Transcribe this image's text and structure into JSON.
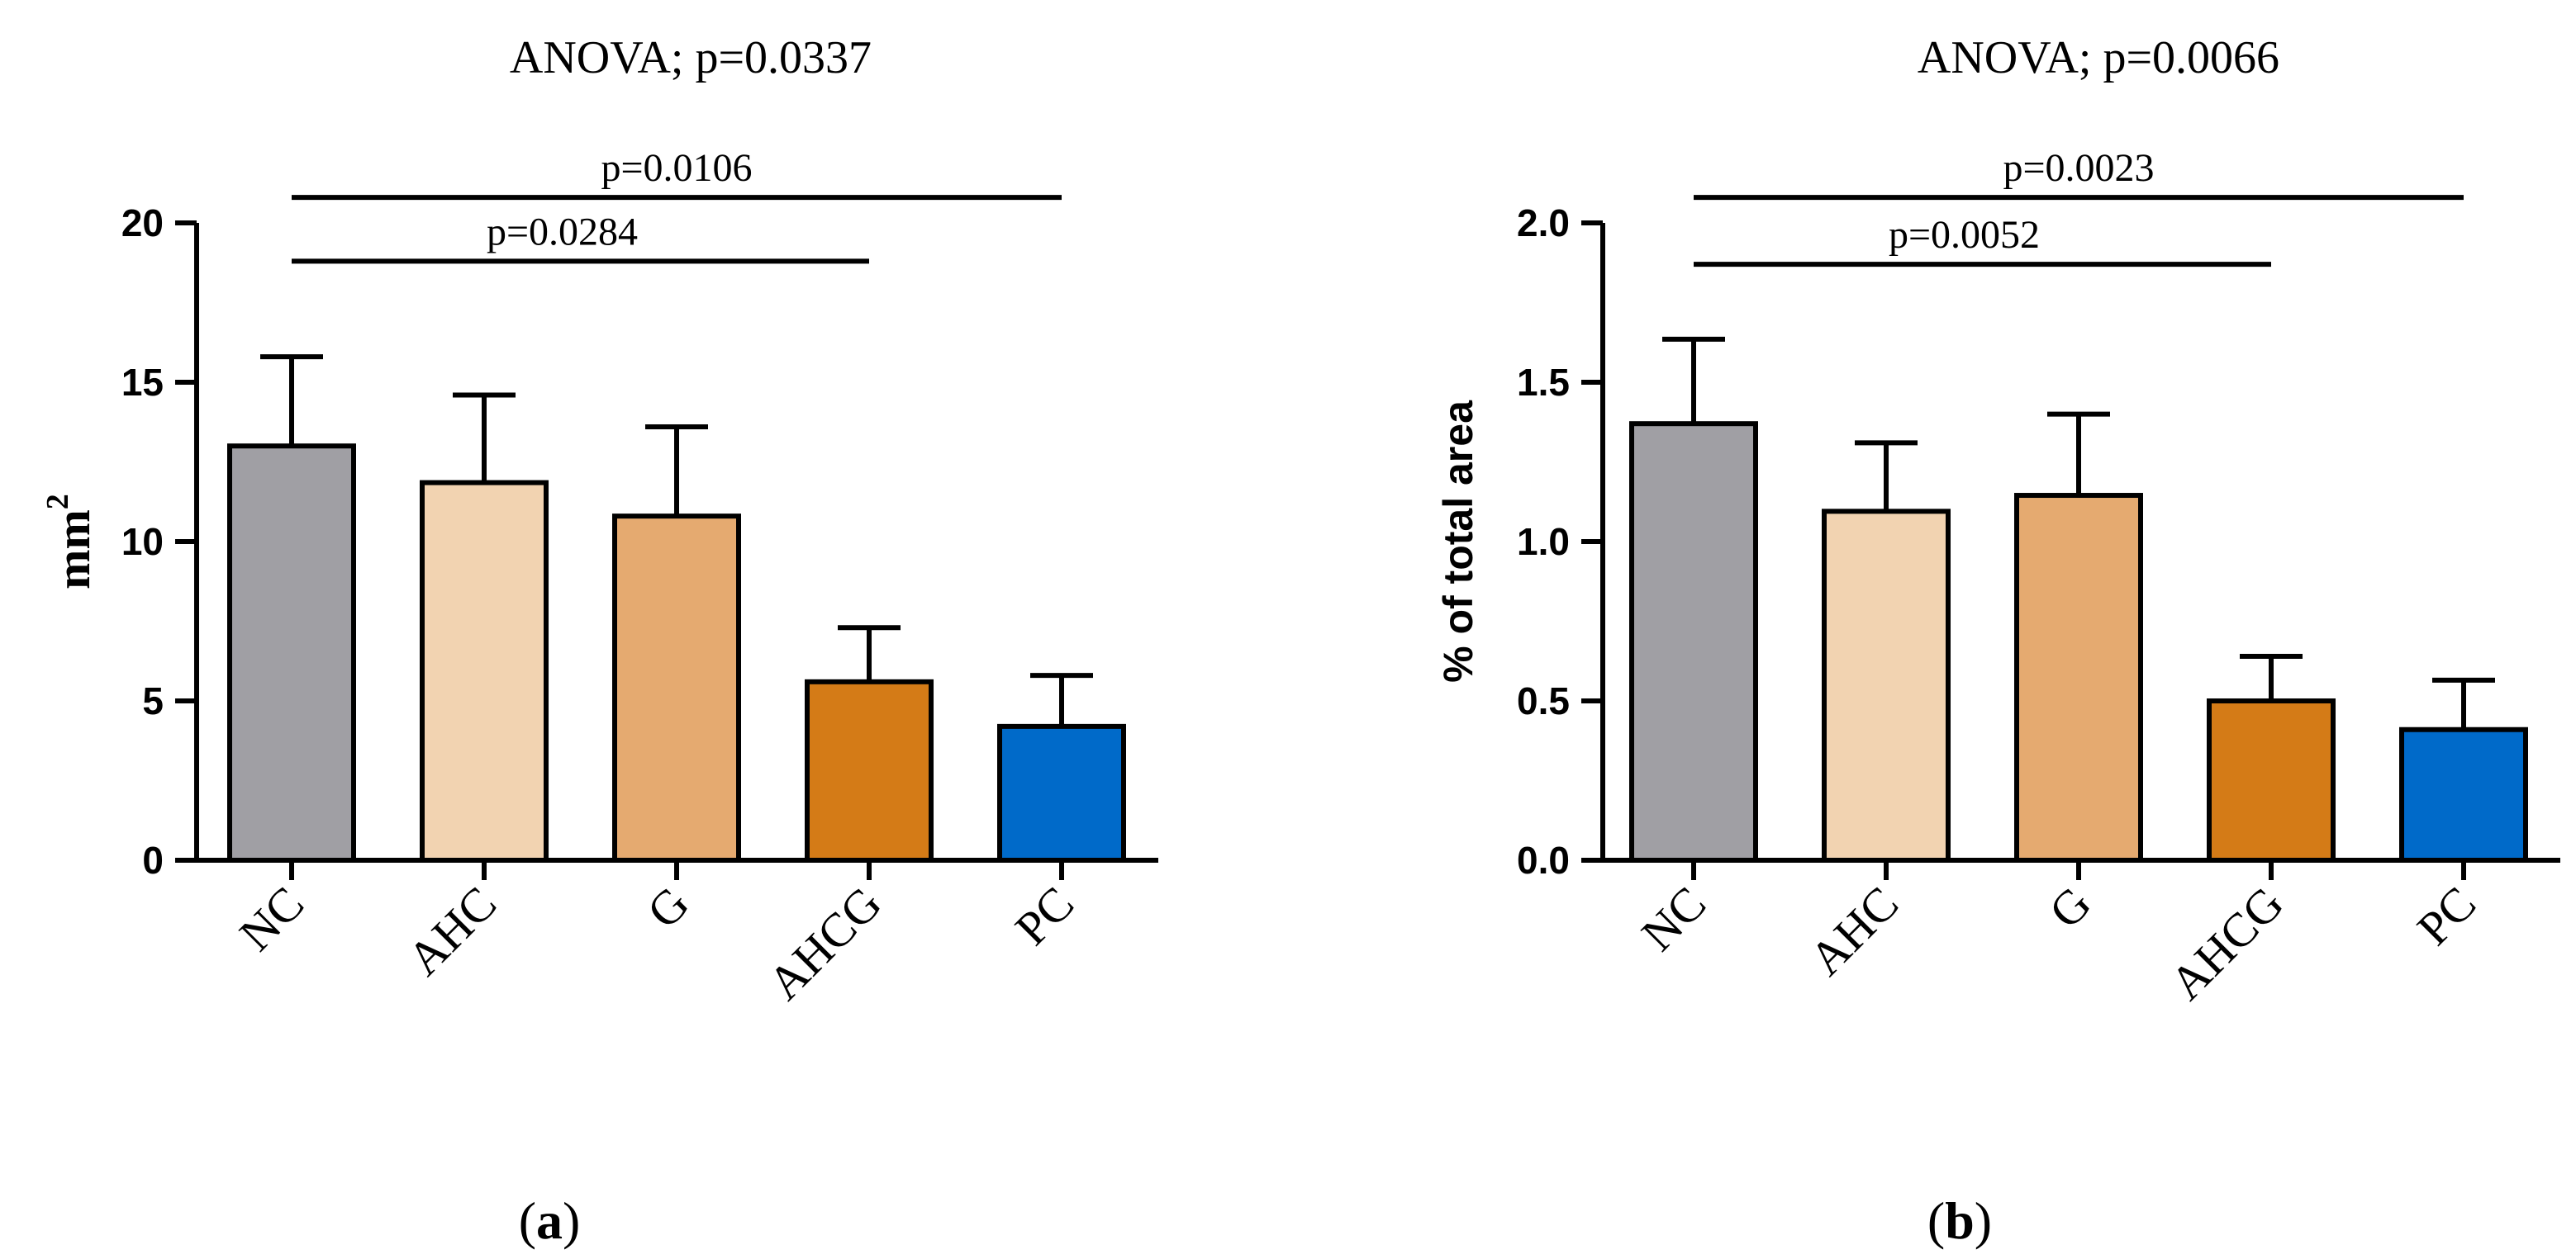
{
  "chart_data": [
    {
      "type": "bar",
      "panel_label": "a",
      "title": "ANOVA; p=0.0337",
      "xlabel": "",
      "ylabel": "mm",
      "ylabel_superscript": "2",
      "categories": [
        "NC",
        "AHC",
        "G",
        "AHCG",
        "PC"
      ],
      "values": [
        13.0,
        11.85,
        10.8,
        5.6,
        4.2
      ],
      "errors": [
        2.8,
        2.75,
        2.8,
        1.7,
        1.6
      ],
      "colors": [
        "#a09fa4",
        "#f2d3b1",
        "#e5aa70",
        "#d47b17",
        "#006ac9"
      ],
      "ylim": [
        0,
        20
      ],
      "yticks": [
        0,
        5,
        10,
        15,
        20
      ],
      "ytick_labels": [
        "0",
        "5",
        "10",
        "15",
        "20"
      ],
      "grid": false,
      "annotations": [
        {
          "text": "p=0.0106",
          "from": "NC",
          "to": "PC",
          "level": 20.8
        },
        {
          "text": "p=0.0284",
          "from": "NC",
          "to": "AHCG",
          "level": 18.8
        }
      ]
    },
    {
      "type": "bar",
      "panel_label": "b",
      "title": "ANOVA; p=0.0066",
      "xlabel": "",
      "ylabel": "% of total area",
      "ylabel_superscript": "",
      "categories": [
        "NC",
        "AHC",
        "G",
        "AHCG",
        "PC"
      ],
      "values": [
        1.37,
        1.095,
        1.145,
        0.5,
        0.41
      ],
      "errors": [
        0.265,
        0.215,
        0.255,
        0.14,
        0.155
      ],
      "colors": [
        "#a09fa4",
        "#f2d3b1",
        "#e5aa70",
        "#d47b17",
        "#006ac9"
      ],
      "ylim": [
        0,
        2.0
      ],
      "yticks": [
        0,
        0.5,
        1.0,
        1.5,
        2.0
      ],
      "ytick_labels": [
        "0.0",
        "0.5",
        "1.0",
        "1.5",
        "2.0"
      ],
      "grid": false,
      "annotations": [
        {
          "text": "p=0.0023",
          "from": "NC",
          "to": "PC",
          "level": 2.08
        },
        {
          "text": "p=0.0052",
          "from": "NC",
          "to": "AHCG",
          "level": 1.87
        }
      ]
    }
  ]
}
